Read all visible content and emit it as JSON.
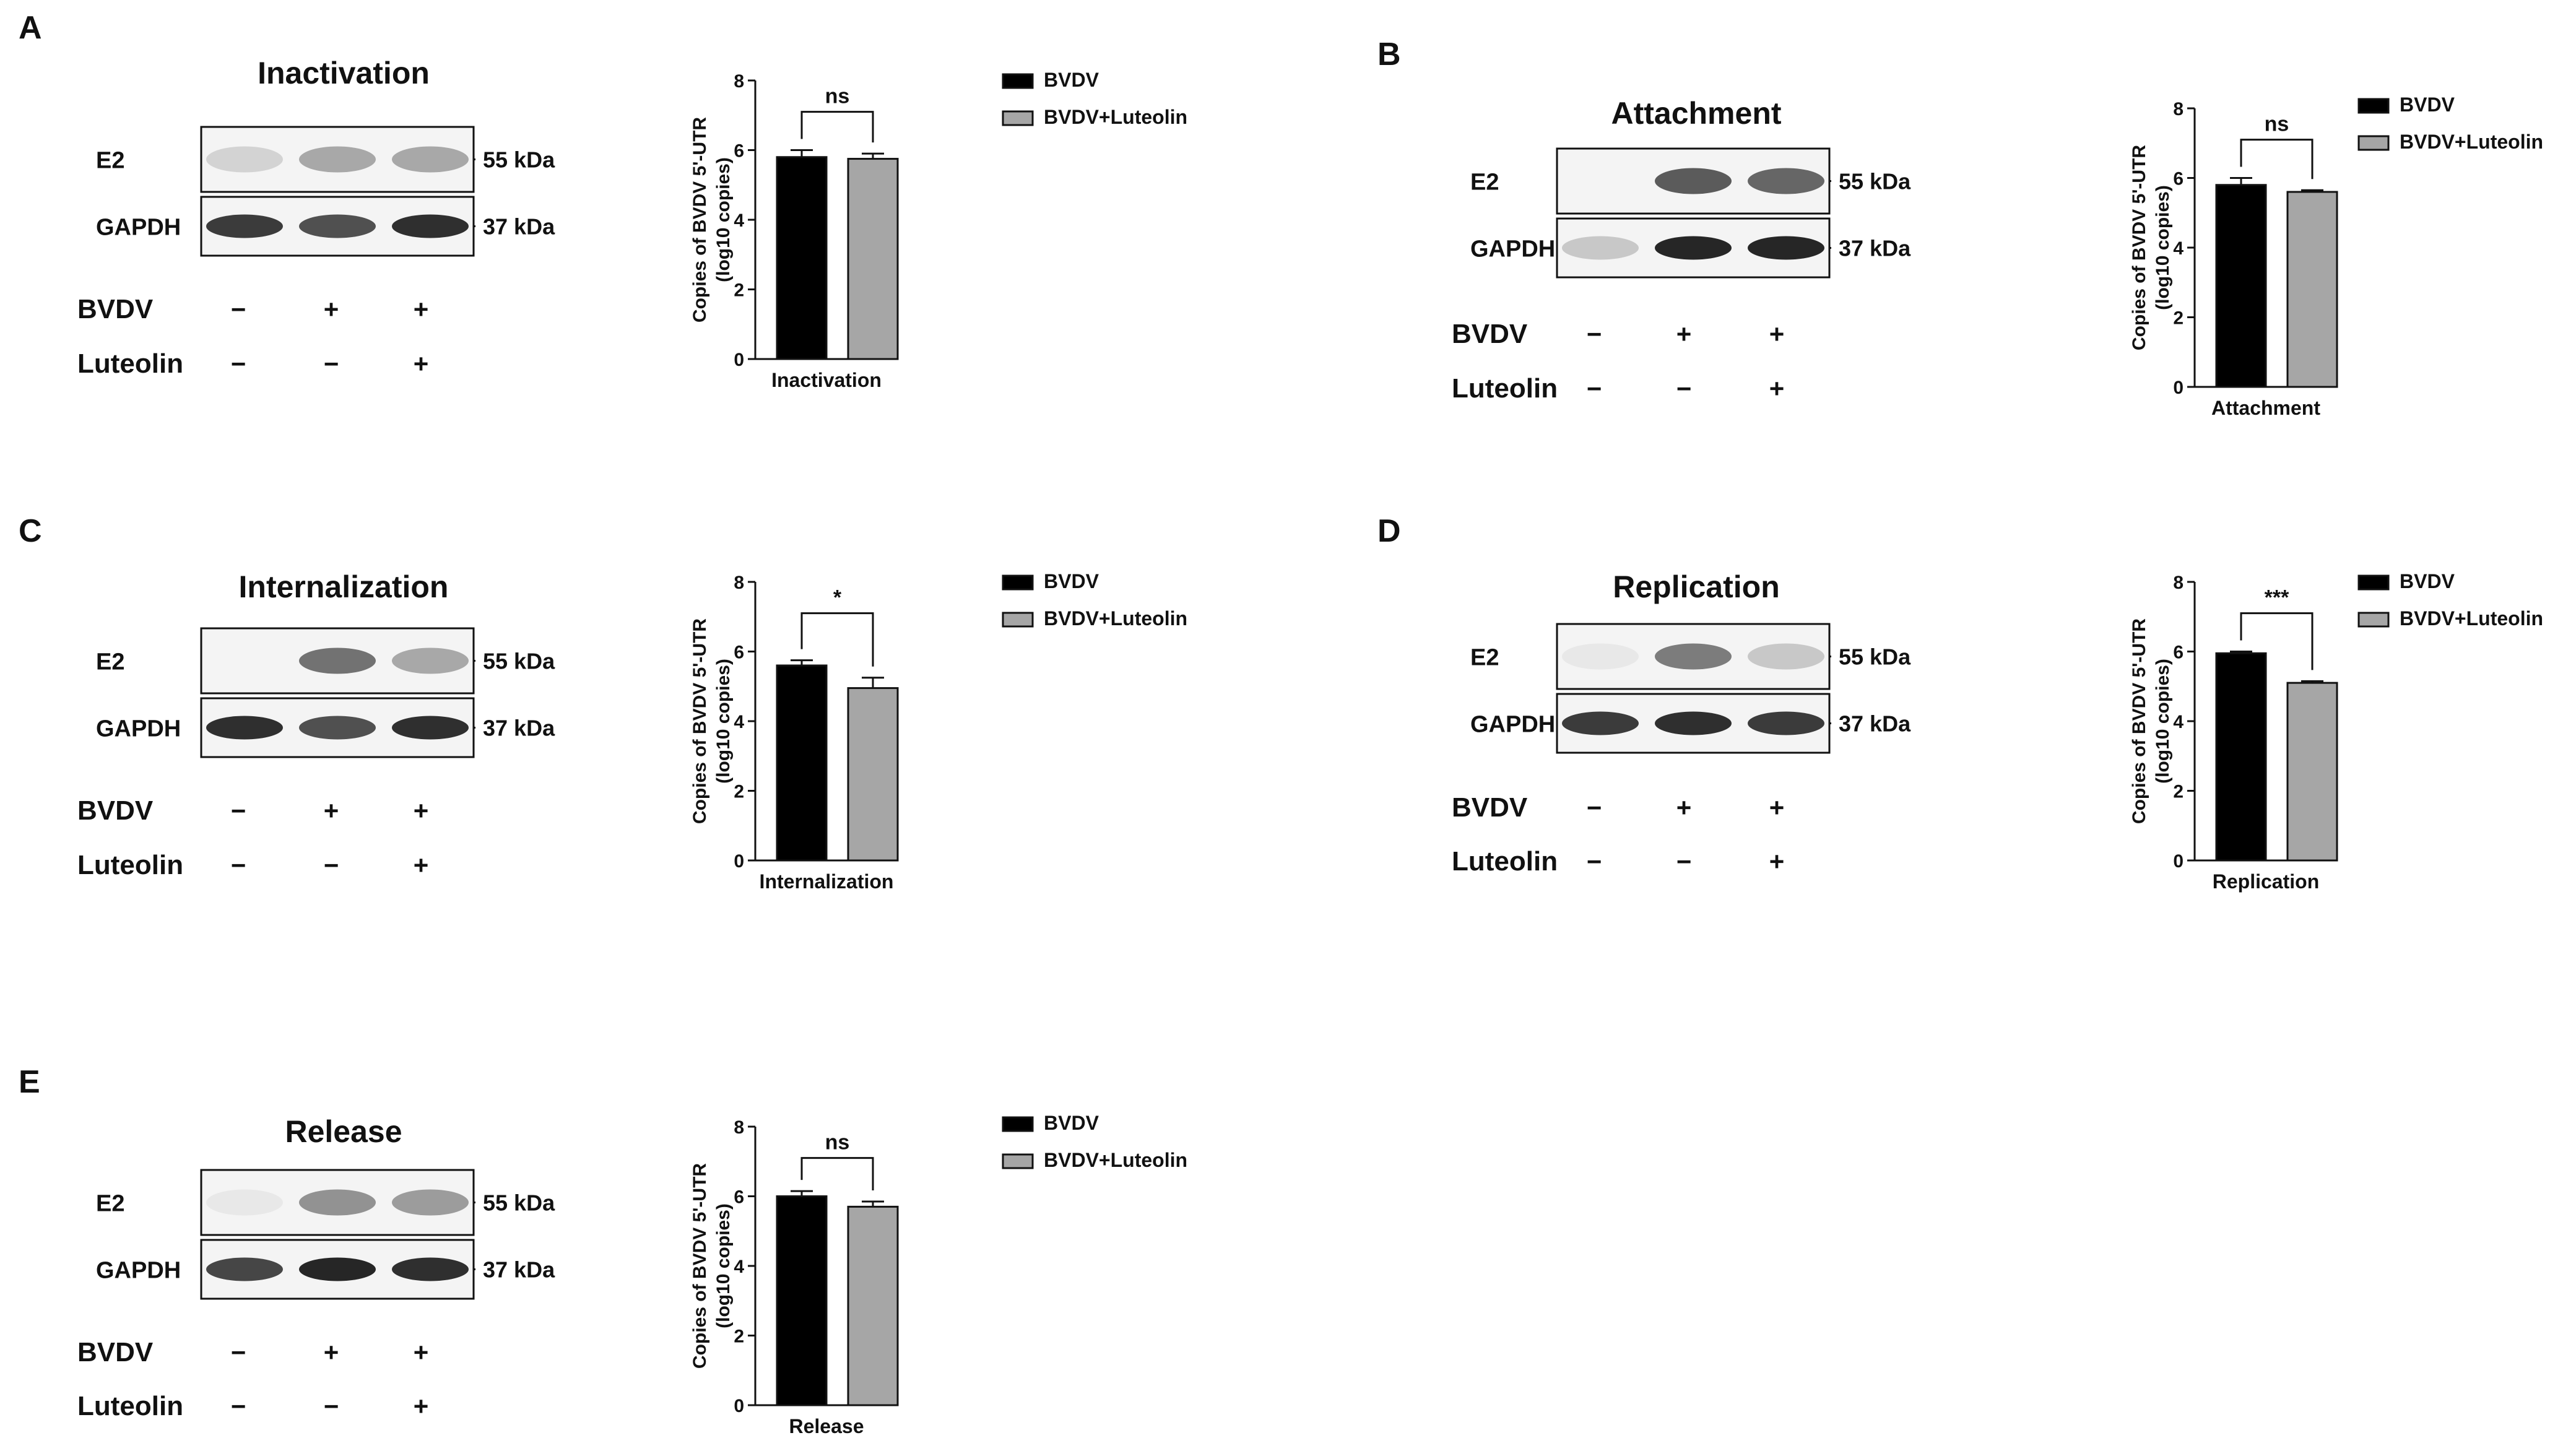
{
  "colors": {
    "bvdv_fill": "#000000",
    "luteolin_fill": "#a6a6a6",
    "axis": "#111111",
    "blot_bg": "#f4f4f4",
    "band_dark": "#1a1a1a"
  },
  "legend": {
    "series_1": "BVDV",
    "series_2": "BVDV+Luteolin"
  },
  "blot_labels": {
    "e2": "E2",
    "gapdh": "GAPDH",
    "bvdv_row": "BVDV",
    "luteolin_row": "Luteolin",
    "kda_55": "55 kDa",
    "kda_37": "37 kDa",
    "bvdv_signs": [
      "−",
      "+",
      "+"
    ],
    "luteolin_signs": [
      "−",
      "−",
      "+"
    ]
  },
  "panels": [
    {
      "letter": "A",
      "blot_title": "Inactivation",
      "e2_bands": [
        0.15,
        0.35,
        0.35
      ],
      "gapdh_bands": [
        0.85,
        0.75,
        0.9
      ]
    },
    {
      "letter": "B",
      "blot_title": "Attachment",
      "e2_bands": [
        0.0,
        0.7,
        0.65
      ],
      "gapdh_bands": [
        0.2,
        0.95,
        0.95
      ]
    },
    {
      "letter": "C",
      "blot_title": "Internalization",
      "e2_bands": [
        0.0,
        0.6,
        0.35
      ],
      "gapdh_bands": [
        0.9,
        0.75,
        0.9
      ]
    },
    {
      "letter": "D",
      "blot_title": "Replication",
      "e2_bands": [
        0.05,
        0.55,
        0.2
      ],
      "gapdh_bands": [
        0.85,
        0.9,
        0.85
      ]
    },
    {
      "letter": "E",
      "blot_title": "Release",
      "e2_bands": [
        0.05,
        0.45,
        0.4
      ],
      "gapdh_bands": [
        0.8,
        0.95,
        0.9
      ]
    }
  ],
  "chart_data": [
    {
      "type": "bar",
      "categories": [
        "Inactivation"
      ],
      "xlabel": "Inactivation",
      "ylabel": "Copies of BVDV 5'-UTR",
      "ylabel_2": "(log10 copies)",
      "ylim": [
        0,
        8
      ],
      "yticks": [
        "0",
        "2",
        "4",
        "6",
        "8"
      ],
      "series": [
        {
          "name": "BVDV",
          "values": [
            5.8
          ],
          "error": [
            0.2
          ]
        },
        {
          "name": "BVDV+Luteolin",
          "values": [
            5.75
          ],
          "error": [
            0.15
          ]
        }
      ],
      "significance": "ns"
    },
    {
      "type": "bar",
      "categories": [
        "Attachment"
      ],
      "xlabel": "Attachment",
      "ylabel": "Copies of BVDV 5'-UTR",
      "ylabel_2": "(log10 copies)",
      "ylim": [
        0,
        8
      ],
      "yticks": [
        "0",
        "2",
        "4",
        "6",
        "8"
      ],
      "series": [
        {
          "name": "BVDV",
          "values": [
            5.8
          ],
          "error": [
            0.2
          ]
        },
        {
          "name": "BVDV+Luteolin",
          "values": [
            5.6
          ],
          "error": [
            0.05
          ]
        }
      ],
      "significance": "ns"
    },
    {
      "type": "bar",
      "categories": [
        "Internalization"
      ],
      "xlabel": "Internalization",
      "ylabel": "Copies of BVDV 5'-UTR",
      "ylabel_2": "(log10 copies)",
      "ylim": [
        0,
        8
      ],
      "yticks": [
        "0",
        "2",
        "4",
        "6",
        "8"
      ],
      "series": [
        {
          "name": "BVDV",
          "values": [
            5.6
          ],
          "error": [
            0.15
          ]
        },
        {
          "name": "BVDV+Luteolin",
          "values": [
            4.95
          ],
          "error": [
            0.3
          ]
        }
      ],
      "significance": "*"
    },
    {
      "type": "bar",
      "categories": [
        "Replication"
      ],
      "xlabel": "Replication",
      "ylabel": "Copies of BVDV 5'-UTR",
      "ylabel_2": "(log10 copies)",
      "ylim": [
        0,
        8
      ],
      "yticks": [
        "0",
        "2",
        "4",
        "6",
        "8"
      ],
      "series": [
        {
          "name": "BVDV",
          "values": [
            5.95
          ],
          "error": [
            0.05
          ]
        },
        {
          "name": "BVDV+Luteolin",
          "values": [
            5.1
          ],
          "error": [
            0.05
          ]
        }
      ],
      "significance": "***"
    },
    {
      "type": "bar",
      "categories": [
        "Release"
      ],
      "xlabel": "Release",
      "ylabel": "Copies of BVDV 5'-UTR",
      "ylabel_2": "(log10 copies)",
      "ylim": [
        0,
        8
      ],
      "yticks": [
        "0",
        "2",
        "4",
        "6",
        "8"
      ],
      "series": [
        {
          "name": "BVDV",
          "values": [
            6.0
          ],
          "error": [
            0.15
          ]
        },
        {
          "name": "BVDV+Luteolin",
          "values": [
            5.7
          ],
          "error": [
            0.15
          ]
        }
      ],
      "significance": "ns"
    }
  ]
}
